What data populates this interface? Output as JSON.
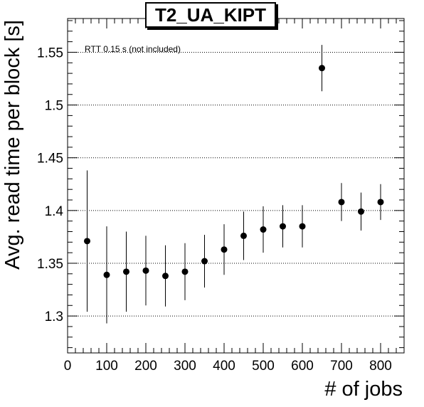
{
  "chart_data": {
    "type": "scatter",
    "title": "T2_UA_KIPT",
    "xlabel": "# of jobs",
    "ylabel": "Avg. read time per block [s]",
    "annotation": "RTT 0.15 s (not included)",
    "xlim": [
      0,
      860
    ],
    "ylim": [
      1.265,
      1.582
    ],
    "xticks": [
      0,
      100,
      200,
      300,
      400,
      500,
      600,
      700,
      800
    ],
    "yticks": [
      1.3,
      1.35,
      1.4,
      1.45,
      1.5,
      1.55
    ],
    "ytick_labels": [
      "1.3",
      "1.35",
      "1.4",
      "1.45",
      "1.5",
      "1.55"
    ],
    "grid": "horizontal dotted",
    "series": [
      {
        "x": [
          50,
          100,
          150,
          200,
          250,
          300,
          350,
          400,
          450,
          500,
          550,
          600,
          650,
          700,
          750,
          800
        ],
        "y": [
          1.371,
          1.339,
          1.342,
          1.343,
          1.338,
          1.342,
          1.352,
          1.363,
          1.376,
          1.382,
          1.385,
          1.385,
          1.535,
          1.408,
          1.399,
          1.408
        ],
        "err": [
          0.067,
          0.046,
          0.038,
          0.033,
          0.029,
          0.027,
          0.025,
          0.024,
          0.023,
          0.022,
          0.02,
          0.02,
          0.022,
          0.018,
          0.018,
          0.017
        ]
      }
    ]
  }
}
